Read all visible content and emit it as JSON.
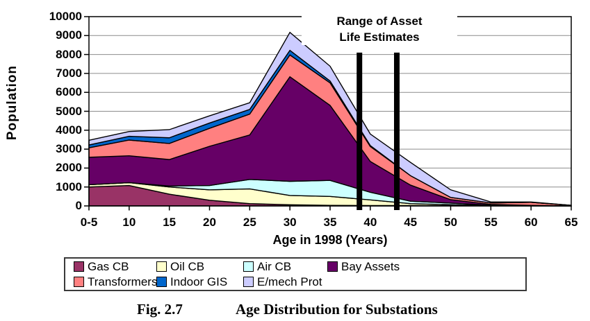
{
  "figure": {
    "caption_label": "Fig. 2.7",
    "caption_title": "Age Distribution for Substations"
  },
  "chart_data": {
    "type": "area",
    "stacked": true,
    "title": "",
    "xlabel": "Age in 1998 (Years)",
    "ylabel": "Population",
    "categories": [
      "0-5",
      "10",
      "15",
      "20",
      "25",
      "30",
      "35",
      "40",
      "45",
      "50",
      "55",
      "60",
      "65"
    ],
    "series": [
      {
        "name": "Gas CB",
        "color": "#993366",
        "values": [
          1000,
          1080,
          620,
          300,
          120,
          60,
          30,
          20,
          20,
          15,
          5,
          5,
          0
        ]
      },
      {
        "name": "Oil CB",
        "color": "#FFFFCC",
        "values": [
          120,
          150,
          380,
          550,
          780,
          490,
          470,
          300,
          100,
          50,
          15,
          5,
          0
        ]
      },
      {
        "name": "Air CB",
        "color": "#CCFFFF",
        "values": [
          0,
          0,
          50,
          230,
          500,
          750,
          850,
          400,
          130,
          85,
          20,
          10,
          0
        ]
      },
      {
        "name": "Bay Assets",
        "color": "#660066",
        "values": [
          1450,
          1420,
          1400,
          2070,
          2350,
          5525,
          3960,
          1630,
          850,
          180,
          40,
          10,
          0
        ]
      },
      {
        "name": "Transformers",
        "color": "#FF8080",
        "values": [
          500,
          830,
          850,
          950,
          1100,
          1150,
          1190,
          790,
          500,
          120,
          80,
          160,
          30
        ]
      },
      {
        "name": "Indoor GIS",
        "color": "#0066CC",
        "values": [
          150,
          200,
          300,
          280,
          250,
          245,
          100,
          50,
          0,
          0,
          0,
          0,
          0
        ]
      },
      {
        "name": "E/mech Prot",
        "color": "#CCCCFF",
        "values": [
          250,
          250,
          430,
          380,
          350,
          950,
          780,
          610,
          700,
          400,
          50,
          20,
          0
        ]
      }
    ],
    "ylim": [
      0,
      10000
    ],
    "yticks": [
      0,
      1000,
      2000,
      3000,
      4000,
      5000,
      6000,
      7000,
      8000,
      9000,
      10000
    ],
    "grid": true,
    "legend_position": "bottom",
    "annotation": {
      "text_lines": [
        "Range of Asset",
        "Life Estimates"
      ],
      "bar_positions_tick_units": [
        6.73,
        7.66
      ],
      "bar_ages_years": [
        39,
        43
      ],
      "bar_top_value": 8100
    },
    "colors": {
      "grid": "#8c8c8c",
      "axis": "#000000",
      "annotation_bar": "#000000",
      "plot_background": "#ffffff"
    }
  }
}
